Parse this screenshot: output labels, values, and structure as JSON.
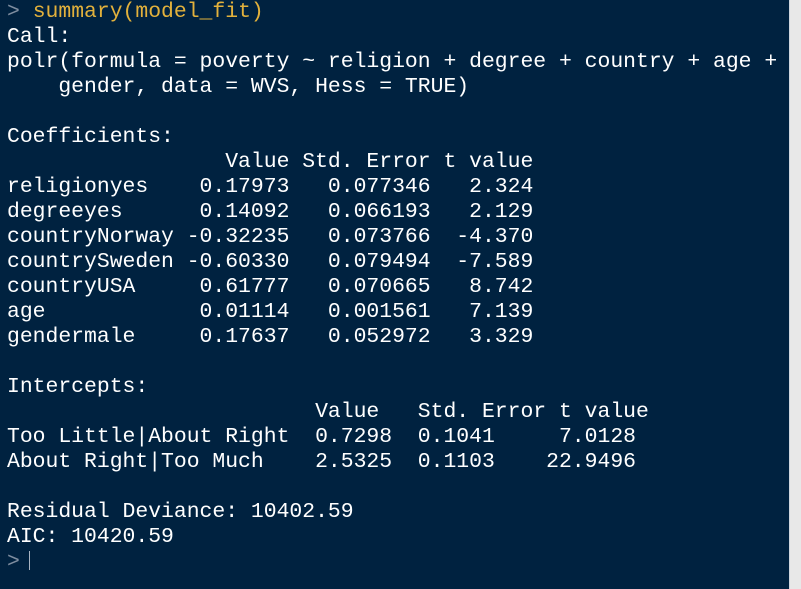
{
  "console": {
    "prompt": ">",
    "command": "summary(model_fit)",
    "call_header": "Call:",
    "call_line1": "polr(formula = poverty ~ religion + degree + country + age +",
    "call_line2": "    gender, data = WVS, Hess = TRUE)",
    "coef_header": "Coefficients:",
    "coef_columns": "                 Value Std. Error t value",
    "coefficients": [
      "religionyes    0.17973   0.077346   2.324",
      "degreeyes      0.14092   0.066193   2.129",
      "countryNorway -0.32235   0.073766  -4.370",
      "countrySweden -0.60330   0.079494  -7.589",
      "countryUSA     0.61777   0.070665   8.742",
      "age            0.01114   0.001561   7.139",
      "gendermale     0.17637   0.052972   3.329"
    ],
    "intercepts_header": "Intercepts:",
    "intercept_columns": "                        Value   Std. Error t value",
    "intercepts": [
      "Too Little|About Right  0.7298  0.1041     7.0128",
      "About Right|Too Much    2.5325  0.1103    22.9496"
    ],
    "residual_deviance": "Residual Deviance: 10402.59",
    "aic": "AIC: 10420.59",
    "final_prompt": ">"
  },
  "colors": {
    "background": "#002240",
    "output_text": "#ffffff",
    "command_text": "#e2b13c",
    "prompt_glyph": "#7f8ea0"
  }
}
